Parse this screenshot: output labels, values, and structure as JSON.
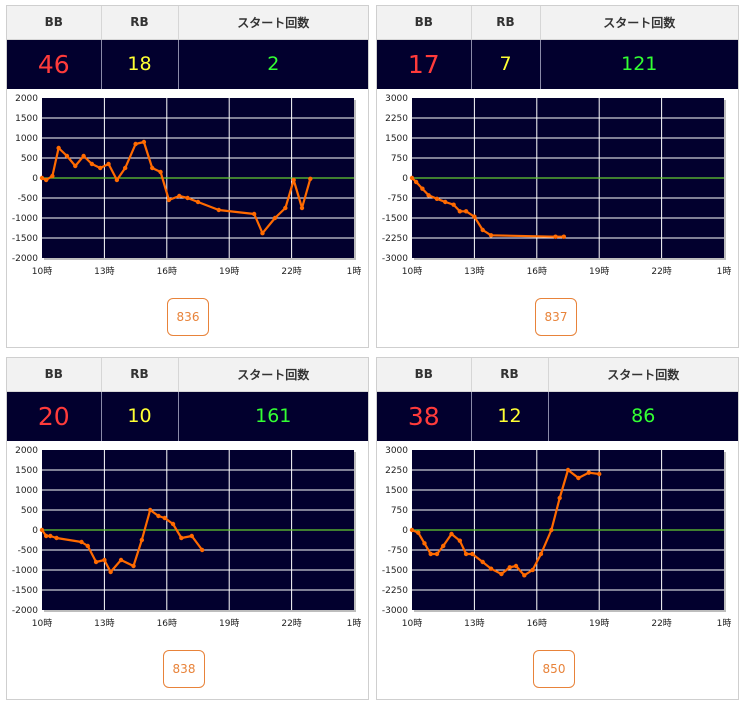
{
  "headers": {
    "bb": "BB",
    "rb": "RB",
    "start": "スタート回数"
  },
  "colors": {
    "bb": "#ff3b3b",
    "rb": "#ffff33",
    "start": "#33ff33",
    "line": "#ff6a00",
    "zero": "#66cc33",
    "plot_bg": "#02002e"
  },
  "panels": [
    {
      "bb": "46",
      "rb": "18",
      "start": "2",
      "machine": "836"
    },
    {
      "bb": "17",
      "rb": "7",
      "start": "121",
      "machine": "837"
    },
    {
      "bb": "20",
      "rb": "10",
      "start": "161",
      "machine": "838"
    },
    {
      "bb": "38",
      "rb": "12",
      "start": "86",
      "machine": "850"
    }
  ],
  "chart_data": [
    {
      "type": "line",
      "ylim": [
        -2000,
        2000
      ],
      "yticks": [
        "2000",
        "1500",
        "1000",
        "500",
        "0",
        "-500",
        "-1000",
        "-1500",
        "-2000"
      ],
      "xlim": [
        10,
        25
      ],
      "xticks": [
        "10時",
        "13時",
        "16時",
        "19時",
        "22時",
        "1時"
      ],
      "x": [
        10,
        10.2,
        10.5,
        10.8,
        11.2,
        11.6,
        12.0,
        12.4,
        12.8,
        13.2,
        13.6,
        14.0,
        14.5,
        14.9,
        15.3,
        15.7,
        16.1,
        16.6,
        17.0,
        17.5,
        18.5,
        20.2,
        20.6,
        21.2,
        21.7,
        22.1,
        22.5,
        22.9
      ],
      "values": [
        0,
        -50,
        50,
        750,
        550,
        300,
        550,
        350,
        250,
        350,
        -50,
        250,
        850,
        900,
        250,
        150,
        -550,
        -450,
        -500,
        -600,
        -800,
        -900,
        -1380,
        -1000,
        -750,
        -50,
        -750,
        -20
      ]
    },
    {
      "type": "line",
      "ylim": [
        -3000,
        3000
      ],
      "yticks": [
        "3000",
        "2250",
        "1500",
        "750",
        "0",
        "-750",
        "-1500",
        "-2250",
        "-3000"
      ],
      "xlim": [
        10,
        25
      ],
      "xticks": [
        "10時",
        "13時",
        "16時",
        "19時",
        "22時",
        "1時"
      ],
      "x": [
        10,
        10.2,
        10.5,
        10.8,
        11.2,
        11.6,
        12.0,
        12.3,
        12.6,
        13.0,
        13.4,
        13.8,
        16.9,
        17.3
      ],
      "values": [
        0,
        -150,
        -400,
        -650,
        -780,
        -900,
        -1000,
        -1250,
        -1250,
        -1450,
        -1950,
        -2150,
        -2200,
        -2200
      ]
    },
    {
      "type": "line",
      "ylim": [
        -2000,
        2000
      ],
      "yticks": [
        "2000",
        "1500",
        "1000",
        "500",
        "0",
        "-500",
        "-1000",
        "-1500",
        "-2000"
      ],
      "xlim": [
        10,
        25
      ],
      "xticks": [
        "10時",
        "13時",
        "16時",
        "19時",
        "22時",
        "1時"
      ],
      "x": [
        10,
        10.2,
        10.4,
        10.7,
        11.9,
        12.2,
        12.6,
        13.0,
        13.3,
        13.8,
        14.4,
        14.8,
        15.2,
        15.6,
        15.9,
        16.3,
        16.7,
        17.2,
        17.7
      ],
      "values": [
        0,
        -150,
        -150,
        -200,
        -300,
        -400,
        -800,
        -750,
        -1050,
        -750,
        -900,
        -250,
        500,
        350,
        300,
        150,
        -200,
        -150,
        -500
      ]
    },
    {
      "type": "line",
      "ylim": [
        -3000,
        3000
      ],
      "yticks": [
        "3000",
        "2250",
        "1500",
        "750",
        "0",
        "-750",
        "-1500",
        "-2250",
        "-3000"
      ],
      "xlim": [
        10,
        25
      ],
      "xticks": [
        "10時",
        "13時",
        "16時",
        "19時",
        "22時",
        "1時"
      ],
      "x": [
        10,
        10.3,
        10.6,
        10.9,
        11.2,
        11.5,
        11.9,
        12.3,
        12.6,
        12.9,
        13.4,
        13.8,
        14.3,
        14.7,
        15.0,
        15.4,
        15.8,
        16.2,
        16.7,
        17.1,
        17.5,
        18.0,
        18.5,
        19.0
      ],
      "values": [
        0,
        -100,
        -500,
        -900,
        -900,
        -600,
        -150,
        -400,
        -900,
        -900,
        -1200,
        -1450,
        -1650,
        -1400,
        -1350,
        -1700,
        -1500,
        -900,
        0,
        1200,
        2250,
        1950,
        2150,
        2100
      ]
    }
  ]
}
